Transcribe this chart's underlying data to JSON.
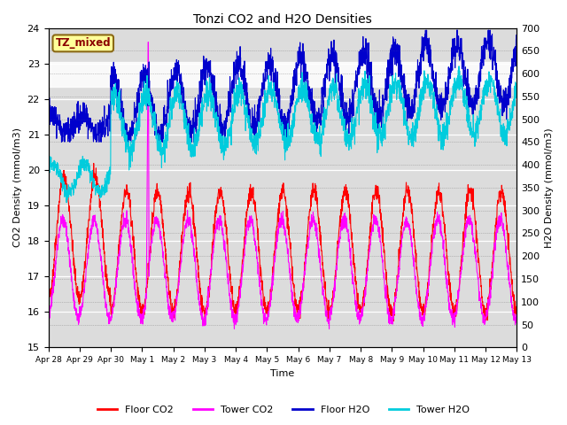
{
  "title": "Tonzi CO2 and H2O Densities",
  "xlabel": "Time",
  "ylabel_left": "CO2 Density (mmol/m3)",
  "ylabel_right": "H2O Density (mmol/m3)",
  "annotation": "TZ_mixed",
  "ylim_left": [
    15.0,
    24.0
  ],
  "ylim_right": [
    0,
    700
  ],
  "yticks_left": [
    15.0,
    16.0,
    17.0,
    18.0,
    19.0,
    20.0,
    21.0,
    22.0,
    23.0,
    24.0
  ],
  "yticks_right": [
    0,
    50,
    100,
    150,
    200,
    250,
    300,
    350,
    400,
    450,
    500,
    550,
    600,
    650,
    700
  ],
  "colors": {
    "floor_co2": "#FF0000",
    "tower_co2": "#FF00FF",
    "floor_h2o": "#0000CC",
    "tower_h2o": "#00CCDD"
  },
  "background_color": "#FFFFFF",
  "plot_bg_color": "#DCDCDC",
  "x_labels": [
    "Apr 28",
    "Apr 29",
    "Apr 30",
    "May 1",
    "May 2",
    "May 3",
    "May 4",
    "May 5",
    "May 6",
    "May 7",
    "May 8",
    "May 9",
    "May 10",
    "May 11",
    "May 12",
    "May 13"
  ],
  "legend_labels": [
    "Floor CO2",
    "Tower CO2",
    "Floor H2O",
    "Tower H2O"
  ],
  "n_points": 2160,
  "figsize": [
    6.4,
    4.8
  ],
  "dpi": 100
}
